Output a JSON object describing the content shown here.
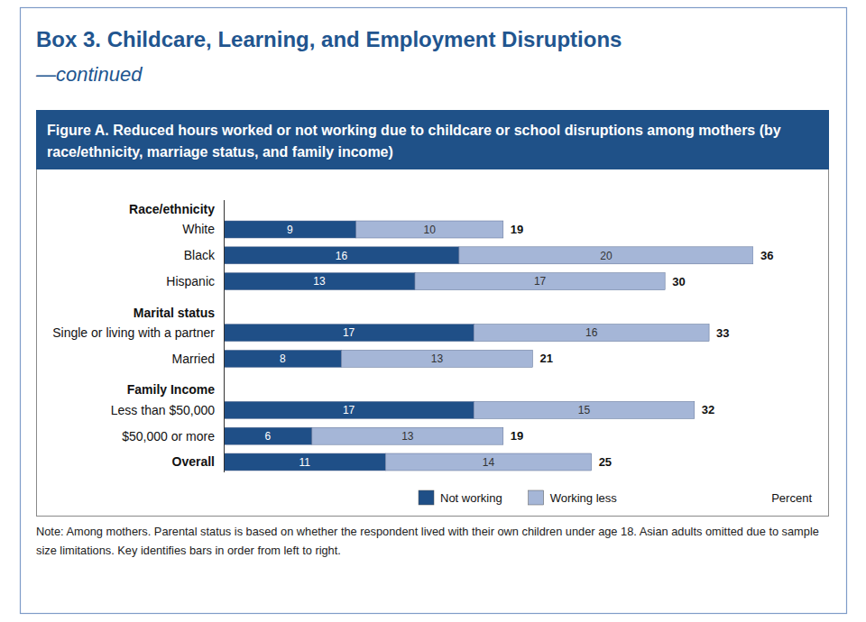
{
  "chart_data": {
    "type": "bar",
    "title": "Box 3. Childcare, Learning, and Employment Disruptions",
    "subtitle": "—continued",
    "figure_title": "Figure A. Reduced hours worked or not working due to childcare or school disruptions among mothers (by race/ethnicity, marriage status, and family income)",
    "note": "Note: Among mothers. Parental status is based on whether the respondent lived with their own children under age 18. Asian adults omitted due to sample size limitations. Key identifies bars in order from left to right.",
    "xlabel": "Percent",
    "categories": [
      "White",
      "Black",
      "Hispanic",
      "Single or living with a partner",
      "Married",
      "Less than $50,000",
      "$50,000 or more",
      "Overall"
    ],
    "group_labels": [
      "Race/ethnicity",
      null,
      null,
      "Marital status",
      null,
      "Family Income",
      null,
      null
    ],
    "series": [
      {
        "name": "Not working",
        "color": "#1f4f87",
        "values": [
          9,
          16,
          13,
          17,
          8,
          17,
          6,
          11
        ]
      },
      {
        "name": "Working less",
        "color": "#a5b6d7",
        "values": [
          10,
          20,
          17,
          16,
          13,
          15,
          13,
          14
        ]
      }
    ],
    "totals": [
      19,
      36,
      30,
      33,
      21,
      32,
      19,
      25
    ],
    "xlim": [
      0,
      36
    ],
    "orientation": "horizontal",
    "stacked": true,
    "data_labels": true,
    "tick_labels": "y",
    "legend": "bottom"
  }
}
